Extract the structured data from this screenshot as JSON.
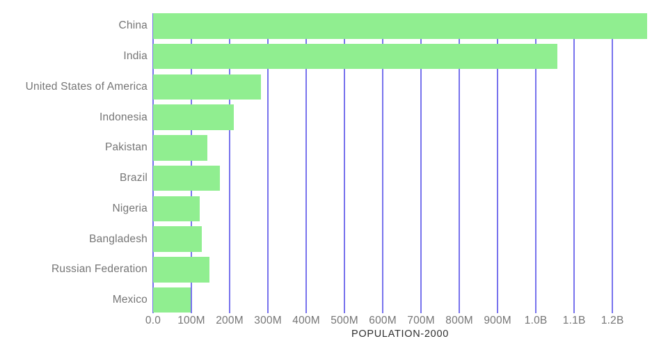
{
  "chart_data": {
    "type": "bar",
    "orientation": "horizontal",
    "title": "",
    "xlabel": "POPULATION-2000",
    "ylabel": "",
    "categories": [
      "China",
      "India",
      "United States of America",
      "Indonesia",
      "Pakistan",
      "Brazil",
      "Nigeria",
      "Bangladesh",
      "Russian Federation",
      "Mexico"
    ],
    "values_millions": [
      1290.6,
      1056.6,
      281.7,
      211.5,
      142.3,
      174.8,
      122.3,
      127.7,
      146.4,
      98.9
    ],
    "xlim_millions": [
      0,
      1290.6
    ],
    "x_ticks": [
      {
        "label": "0.0",
        "millions": 0
      },
      {
        "label": "100M",
        "millions": 100
      },
      {
        "label": "200M",
        "millions": 200
      },
      {
        "label": "300M",
        "millions": 300
      },
      {
        "label": "400M",
        "millions": 400
      },
      {
        "label": "500M",
        "millions": 500
      },
      {
        "label": "600M",
        "millions": 600
      },
      {
        "label": "700M",
        "millions": 700
      },
      {
        "label": "800M",
        "millions": 800
      },
      {
        "label": "900M",
        "millions": 900
      },
      {
        "label": "1.0B",
        "millions": 1000
      },
      {
        "label": "1.1B",
        "millions": 1100
      },
      {
        "label": "1.2B",
        "millions": 1200
      }
    ],
    "grid": true,
    "legend": false,
    "colors": {
      "bar": "#90EE90",
      "grid": "#7772ED",
      "tick_text": "#757575",
      "axis_title_text": "#2F2F2F",
      "background": "#FFFFFF"
    }
  }
}
